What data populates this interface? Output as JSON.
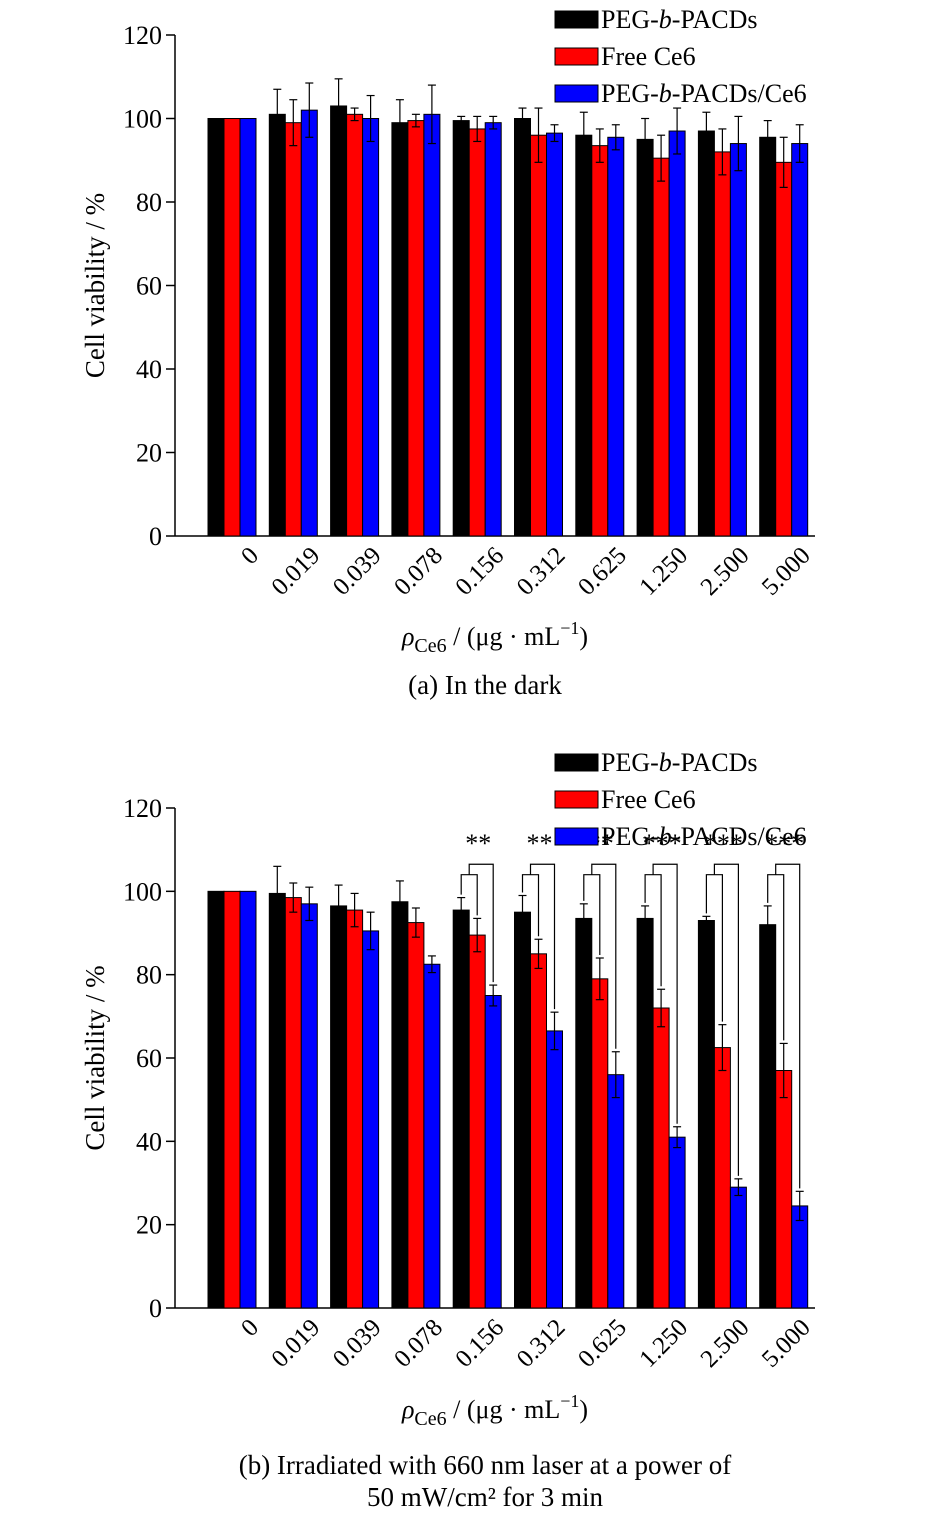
{
  "colors": {
    "series_black": "#000000",
    "series_red": "#ff0000",
    "series_blue": "#0000ff",
    "axis": "#000000"
  },
  "chart_data": [
    {
      "type": "bar",
      "panel_id": "a",
      "caption": "(a) In the dark",
      "ylabel": "Cell viability / %",
      "xlabel": {
        "symbol": "ρ",
        "subscript": "Ce6",
        "unit_open": " / (μg · mL",
        "unit_sup": "−1",
        "unit_close": ")"
      },
      "ylim": [
        0,
        120
      ],
      "yticks": [
        0,
        20,
        40,
        60,
        80,
        100,
        120
      ],
      "categories": [
        "0",
        "0.019",
        "0.039",
        "0.078",
        "0.156",
        "0.312",
        "0.625",
        "1.250",
        "2.500",
        "5.000"
      ],
      "legend": {
        "placement": "top-right"
      },
      "series": [
        {
          "name_parts": [
            "PEG-",
            "b",
            "-PACDs"
          ],
          "color": "#000000",
          "values": [
            100,
            101,
            103,
            99,
            99.5,
            100,
            96,
            95,
            97,
            95.5
          ],
          "errors": [
            0,
            6,
            6.5,
            5.5,
            1,
            2.5,
            5.5,
            5,
            4.5,
            4
          ]
        },
        {
          "name_parts": [
            "Free Ce6"
          ],
          "color": "#ff0000",
          "values": [
            100,
            99,
            101,
            99.5,
            97.5,
            96,
            93.5,
            90.5,
            92,
            89.5
          ],
          "errors": [
            0,
            5.5,
            1.5,
            1.5,
            3,
            6.5,
            4,
            5.5,
            5.5,
            6
          ]
        },
        {
          "name_parts": [
            "PEG-",
            "b",
            "-PACDs/Ce6"
          ],
          "color": "#0000ff",
          "values": [
            100,
            102,
            100,
            101,
            99,
            96.5,
            95.5,
            97,
            94,
            94
          ],
          "errors": [
            0,
            6.5,
            5.5,
            7,
            1.5,
            2,
            3,
            5.5,
            6.5,
            4.5
          ]
        }
      ],
      "annotations": []
    },
    {
      "type": "bar",
      "panel_id": "b",
      "caption": "(b) Irradiated with 660 nm laser at a power of",
      "caption_line2": "50 mW/cm² for 3 min",
      "ylabel": "Cell viability / %",
      "xlabel": {
        "symbol": "ρ",
        "subscript": "Ce6",
        "unit_open": " / (μg · mL",
        "unit_sup": "−1",
        "unit_close": ")"
      },
      "ylim": [
        0,
        120
      ],
      "yticks": [
        0,
        20,
        40,
        60,
        80,
        100,
        120
      ],
      "categories": [
        "0",
        "0.019",
        "0.039",
        "0.078",
        "0.156",
        "0.312",
        "0.625",
        "1.250",
        "2.500",
        "5.000"
      ],
      "legend": {
        "placement": "top-right"
      },
      "series": [
        {
          "name_parts": [
            "PEG-",
            "b",
            "-PACDs"
          ],
          "color": "#000000",
          "values": [
            100,
            99.5,
            96.5,
            97.5,
            95.5,
            95,
            93.5,
            93.5,
            93,
            92
          ],
          "errors": [
            0,
            6.5,
            5,
            5,
            3,
            4,
            3.5,
            3,
            1,
            4.5
          ]
        },
        {
          "name_parts": [
            "Free Ce6"
          ],
          "color": "#ff0000",
          "values": [
            100,
            98.5,
            95.5,
            92.5,
            89.5,
            85,
            79,
            72,
            62.5,
            57
          ],
          "errors": [
            0,
            3.5,
            4,
            3.5,
            4,
            3.5,
            5,
            4.5,
            5.5,
            6.5
          ]
        },
        {
          "name_parts": [
            "PEG-",
            "b",
            "-PACDs/Ce6"
          ],
          "color": "#0000ff",
          "values": [
            100,
            97,
            90.5,
            82.5,
            75,
            66.5,
            56,
            41,
            29,
            24.5
          ],
          "errors": [
            0,
            4,
            4.5,
            2,
            2.5,
            4.5,
            5.5,
            2.5,
            2,
            3.5
          ]
        }
      ],
      "annotations": [
        {
          "category_index": 4,
          "label": "**"
        },
        {
          "category_index": 5,
          "label": "**"
        },
        {
          "category_index": 6,
          "label": "**"
        },
        {
          "category_index": 7,
          "label": "***"
        },
        {
          "category_index": 8,
          "label": "***"
        },
        {
          "category_index": 9,
          "label": "***"
        }
      ]
    }
  ]
}
